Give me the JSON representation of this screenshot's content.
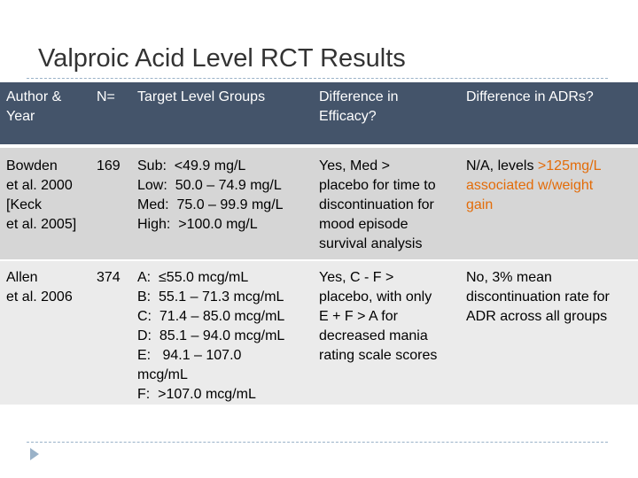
{
  "title": "Valproic Acid Level RCT Results",
  "colors": {
    "header_bg": "#44546a",
    "row_a_bg": "#d6d6d6",
    "row_b_bg": "#ebebeb",
    "accent": "#e36c09",
    "rule": "#9ab2c8"
  },
  "headers": {
    "author": [
      "Author &",
      "Year"
    ],
    "n": "N=",
    "target": "Target Level Groups",
    "efficacy": [
      "Difference in",
      "Efficacy?"
    ],
    "adrs": "Difference in ADRs?"
  },
  "rows": [
    {
      "author": [
        "Bowden",
        "et al. 2000",
        "[Keck",
        "et al. 2005]"
      ],
      "n": "169",
      "target": [
        "Sub:  <49.9 mg/L",
        "Low:  50.0 – 74.9 mg/L",
        "Med:  75.0 – 99.9 mg/L",
        "High:  >100.0 mg/L"
      ],
      "efficacy": [
        "Yes, Med >",
        "placebo for time to",
        "discontinuation for",
        "mood episode",
        "survival analysis"
      ],
      "adrs_prefix": "N/A, levels ",
      "adrs_accent_1": ">125mg/L",
      "adrs_accent_2": "associated w/weight",
      "adrs_accent_3": "gain"
    },
    {
      "author": [
        "Allen",
        "et al. 2006"
      ],
      "n": "374",
      "target": [
        "A:  ≤55.0 mcg/mL",
        "B:  55.1 – 71.3 mcg/mL",
        "C:  71.4 – 85.0 mcg/mL",
        "D:  85.1 – 94.0 mcg/mL",
        "E:   94.1 – 107.0",
        "mcg/mL",
        "F:  >107.0 mcg/mL"
      ],
      "efficacy": [
        "Yes, C - F >",
        "placebo, with only",
        "E + F > A for",
        "decreased mania",
        "rating scale scores"
      ],
      "adrs": [
        "No, 3% mean",
        "discontinuation rate for",
        "ADR across all groups"
      ]
    }
  ]
}
